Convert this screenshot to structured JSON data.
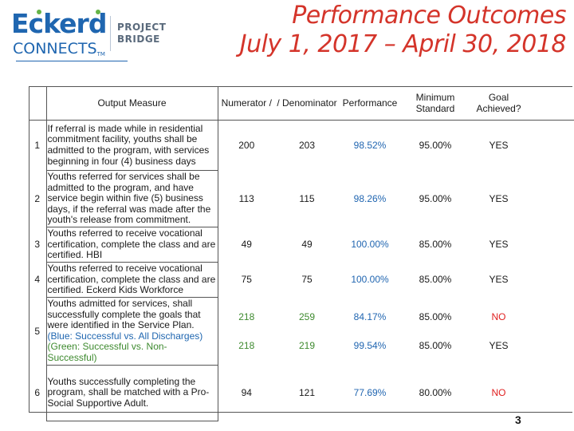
{
  "logo": {
    "brand": "Eckerd",
    "sub": "CONNECTS",
    "tm": "TM",
    "program_line1": "PROJECT",
    "program_line2": "BRIDGE"
  },
  "title": {
    "line1": "Performance Outcomes",
    "line2": "July 1, 2017 – April 30, 2018"
  },
  "table": {
    "headers": {
      "measure": "Output Measure",
      "numerator": "Numerator /",
      "denominator": "/ Denominator",
      "performance": "Performance",
      "min_standard": "Minimum Standard",
      "goal": "Goal Achieved?"
    },
    "rows": [
      {
        "num": "1",
        "measure": "If referral is made while in residential commitment facility, youths shall be admitted to the program, with services beginning in four (4) business days",
        "numerator": "200",
        "denominator": "203",
        "performance": "98.52%",
        "standard": "95.00%",
        "goal": "YES"
      },
      {
        "num": "2",
        "measure": "Youths referred for services shall be admitted to the program, and have service begin within five (5) business days, if the referral was made after the youth's release from commitment.",
        "numerator": "113",
        "denominator": "115",
        "performance": "98.26%",
        "standard": "95.00%",
        "goal": "YES"
      },
      {
        "num": "3",
        "measure": "Youths referred to receive vocational certification, complete the class and are certified. HBI",
        "numerator": "49",
        "denominator": "49",
        "performance": "100.00%",
        "standard": "85.00%",
        "goal": "YES"
      },
      {
        "num": "4",
        "measure": "Youths referred to receive vocational certification, complete the class and are certified. Eckerd Kids Workforce",
        "numerator": "75",
        "denominator": "75",
        "performance": "100.00%",
        "standard": "85.00%",
        "goal": "YES"
      },
      {
        "num": "5",
        "measure": "Youths admitted for services, shall successfully complete the goals that were identified in the Service Plan.",
        "measure_blue": "(Blue: Successful vs. All Discharges)",
        "measure_green": "(Green: Successful vs. Non-Successful)",
        "numerator": "218",
        "denominator": "259",
        "performance": "84.17%",
        "standard": "85.00%",
        "goal": "NO",
        "numerator2": "218",
        "denominator2": "219",
        "performance2": "99.54%",
        "standard2": "85.00%",
        "goal2": "YES"
      },
      {
        "num": "6",
        "measure": "Youths successfully completing the program, shall be matched with a Pro-Social Supportive Adult.",
        "numerator": "94",
        "denominator": "121",
        "performance": "77.69%",
        "standard": "80.00%",
        "goal": "NO"
      }
    ]
  },
  "page_number": "3",
  "colors": {
    "title": "#d4342a",
    "brand_blue": "#1f66b0",
    "performance_blue": "#2166b1",
    "no_red": "#e02020",
    "green": "#3e8a2f"
  }
}
